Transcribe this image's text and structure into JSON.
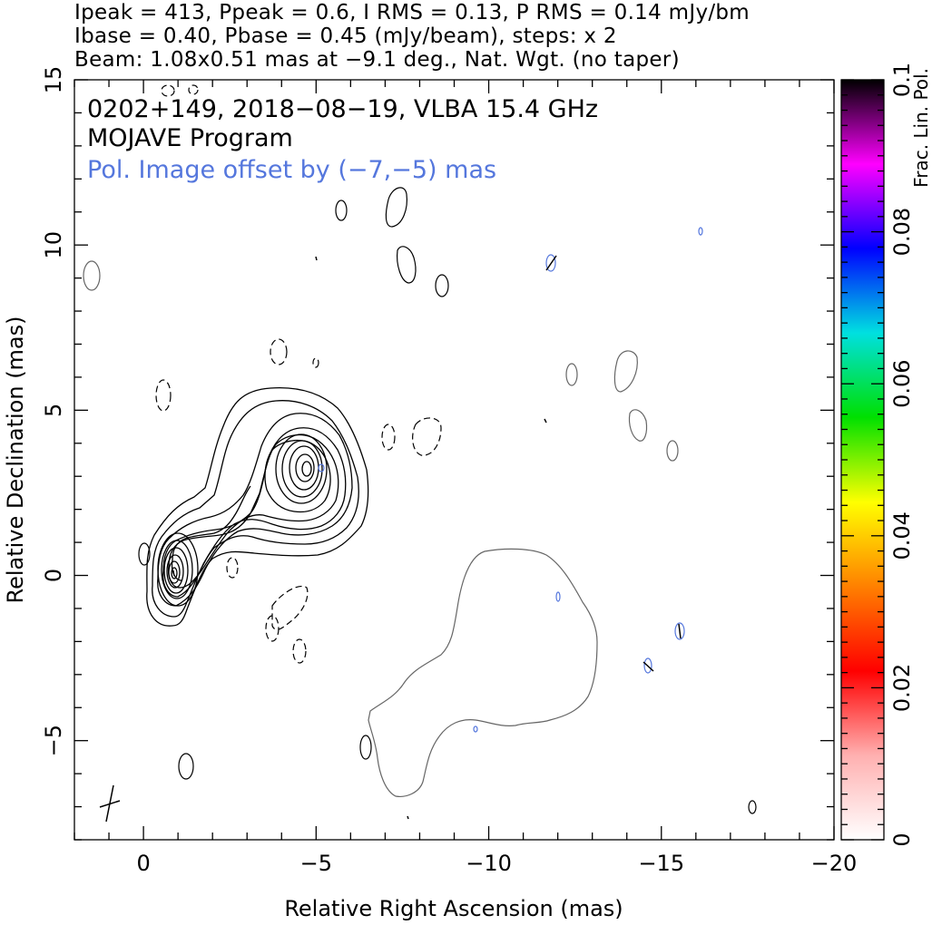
{
  "header": {
    "line1": "Ipeak = 413, Ppeak = 0.6, I RMS = 0.13, P RMS = 0.14 mJy/bm",
    "line2": "Ibase = 0.40, Pbase = 0.45 (mJy/beam), steps: x 2",
    "line3": "Beam: 1.08x0.51 mas at −9.1 deg., Nat. Wgt. (no taper)"
  },
  "annotations": {
    "source": "0202+149, 2018−08−19, VLBA 15.4 GHz",
    "program": "MOJAVE Program",
    "pol_offset": "Pol. Image offset by (−7,−5) mas"
  },
  "colors": {
    "stokes_i_contour": "#000000",
    "negative_contour": "#000000",
    "pol_contour": "#5577dd",
    "pol_intensity_contour": "#666666",
    "pol_offset_text": "#5577dd"
  },
  "chart_data": {
    "type": "contour",
    "title": "0202+149, 2018−08−19, VLBA 15.4 GHz",
    "xlabel": "Relative Right Ascension (mas)",
    "ylabel": "Relative Declination (mas)",
    "xlim": [
      2.0,
      -20.0
    ],
    "ylim": [
      -8.0,
      15.0
    ],
    "x_ticks": [
      0,
      -5,
      -10,
      -15,
      -20
    ],
    "x_tick_labels": [
      "0",
      "−5",
      "−10",
      "−15",
      "−20"
    ],
    "y_ticks": [
      -5,
      0,
      5,
      10,
      15
    ],
    "y_tick_labels": [
      "−5",
      "0",
      "5",
      "10",
      "15"
    ],
    "colorbar": {
      "label": "Frac. Lin. Pol.",
      "range": [
        0,
        0.1
      ],
      "ticks": [
        0,
        0.02,
        0.04,
        0.06,
        0.08,
        0.1
      ],
      "tick_labels": [
        "0",
        "0.02",
        "0.04",
        "0.06",
        "0.08",
        "0.1"
      ],
      "colormap": [
        "#ffffff",
        "#ffb0b0",
        "#ff0000",
        "#ff8000",
        "#ffff00",
        "#00e000",
        "#00e0e0",
        "#0000ff",
        "#ff00ff",
        "#000000"
      ]
    },
    "stokes_i": {
      "peak_mjy_per_beam": 413,
      "base_mjy_per_beam": 0.4,
      "contour_step_factor": 2,
      "core_position": [
        0,
        0.2
      ],
      "jet_component_position": [
        -4.0,
        3.3
      ]
    },
    "polarization": {
      "peak_mjy_per_beam": 0.6,
      "base_mjy_per_beam": 0.45,
      "image_offset_mas": [
        -7,
        -5
      ]
    },
    "beam": {
      "major_mas": 1.08,
      "minor_mas": 0.51,
      "pa_deg": -9.1,
      "weighting": "Nat. Wgt. (no taper)"
    }
  }
}
